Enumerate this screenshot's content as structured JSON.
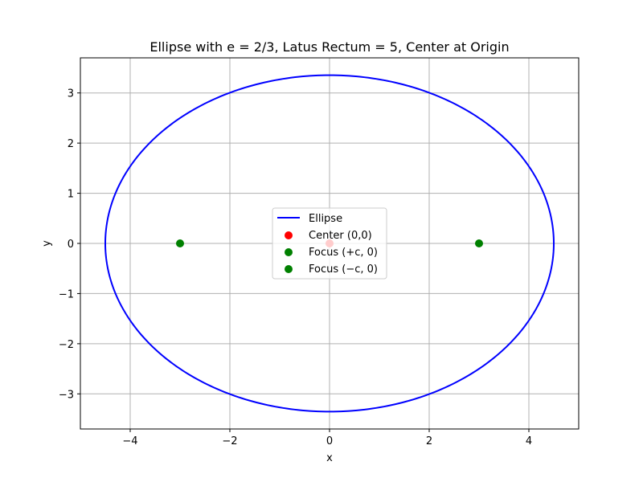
{
  "chart_data": {
    "type": "line",
    "title": "Ellipse with e = 2/3, Latus Rectum = 5, Center at Origin",
    "xlabel": "x",
    "ylabel": "y",
    "xlim": [
      -5,
      5
    ],
    "ylim": [
      -3.7,
      3.7
    ],
    "grid": true,
    "legend_position": "center",
    "x_ticks": [
      {
        "value": -4,
        "label": "−4"
      },
      {
        "value": -2,
        "label": "−2"
      },
      {
        "value": 0,
        "label": "0"
      },
      {
        "value": 2,
        "label": "2"
      },
      {
        "value": 4,
        "label": "4"
      }
    ],
    "y_ticks": [
      {
        "value": -3,
        "label": "−3"
      },
      {
        "value": -2,
        "label": "−2"
      },
      {
        "value": -1,
        "label": "−1"
      },
      {
        "value": 0,
        "label": "0"
      },
      {
        "value": 1,
        "label": "1"
      },
      {
        "value": 2,
        "label": "2"
      },
      {
        "value": 3,
        "label": "3"
      }
    ],
    "ellipse": {
      "name": "Ellipse",
      "center": [
        0,
        0
      ],
      "a": 4.5,
      "b": 3.354,
      "color": "#0000ff"
    },
    "points": [
      {
        "name": "Center (0,0)",
        "x": 0,
        "y": 0,
        "color": "#ff0000"
      },
      {
        "name": "Focus (+c, 0)",
        "x": 3,
        "y": 0,
        "color": "#008000"
      },
      {
        "name": "Focus (−c, 0)",
        "x": -3,
        "y": 0,
        "color": "#008000"
      }
    ]
  }
}
